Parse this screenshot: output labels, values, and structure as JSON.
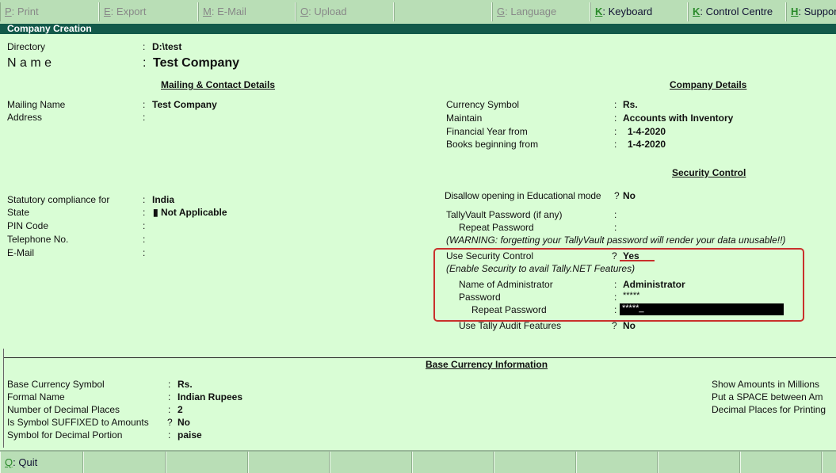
{
  "toolbar": [
    {
      "key": "P",
      "label": "Print",
      "enabled": false
    },
    {
      "key": "E",
      "label": "Export",
      "enabled": false
    },
    {
      "key": "M",
      "label": "E-Mail",
      "enabled": false
    },
    {
      "key": "O",
      "label": "Upload",
      "enabled": false
    },
    {
      "key": "",
      "label": "",
      "enabled": false
    },
    {
      "key": "G",
      "label": "Language",
      "enabled": false
    },
    {
      "key": "K",
      "label": "Keyboard",
      "enabled": true
    },
    {
      "key": "K",
      "label": "Control Centre",
      "enabled": true
    },
    {
      "key": "H",
      "label": "Support",
      "enabled": true
    }
  ],
  "title": "Company  Creation",
  "directory": {
    "label": "Directory",
    "value": "D:\\test"
  },
  "name": {
    "label": "N a m e",
    "value": "Test Company"
  },
  "mailing": {
    "heading": "Mailing & Contact Details",
    "mailing_name_label": "Mailing Name",
    "mailing_name": "Test Company",
    "address_label": "Address",
    "statutory_label": "Statutory compliance for",
    "statutory": "India",
    "state_label": "State",
    "state": "Not Applicable",
    "pin_label": "PIN Code",
    "telephone_label": "Telephone No.",
    "email_label": "E-Mail"
  },
  "company": {
    "heading": "Company Details",
    "currency_label": "Currency Symbol",
    "currency": "Rs.",
    "maintain_label": "Maintain",
    "maintain": "Accounts with Inventory",
    "fy_label": "Financial Year from",
    "fy": "1-4-2020",
    "books_label": "Books beginning from",
    "books": "1-4-2020"
  },
  "security": {
    "heading": "Security Control",
    "disallow_label": "Disallow opening in Educational mode",
    "disallow": "No",
    "vault_label": "TallyVault Password (if any)",
    "vault_repeat_label": "Repeat Password",
    "warning": "(WARNING: forgetting your TallyVault password will render your data unusable!!)",
    "use_label": "Use Security Control",
    "use": "Yes",
    "enable_note": "(Enable Security to avail Tally.NET Features)",
    "admin_label": "Name of Administrator",
    "admin": "Administrator",
    "password_label": "Password",
    "password": "*****",
    "repeat_label": "Repeat Password",
    "repeat": "*****",
    "audit_label": "Use Tally Audit Features",
    "audit": "No"
  },
  "base": {
    "heading": "Base Currency Information",
    "symbol_label": "Base Currency Symbol",
    "symbol": "Rs.",
    "formal_label": "Formal Name",
    "formal": "Indian Rupees",
    "decimals_label": "Number of Decimal Places",
    "decimals": "2",
    "suffix_label": "Is Symbol SUFFIXED to Amounts",
    "suffix": "No",
    "portion_label": "Symbol for Decimal Portion",
    "portion": "paise",
    "millions_label": "Show Amounts in Millions",
    "space_label": "Put a SPACE between Am",
    "printing_label": "Decimal Places for Printing"
  },
  "bottom": {
    "quit_key": "Q",
    "quit_label": "Quit"
  },
  "colors": {
    "background": "#d9fdd5",
    "title_bar": "#13594a",
    "button_bar": "#b9deb6",
    "highlight": "#c9302c"
  }
}
